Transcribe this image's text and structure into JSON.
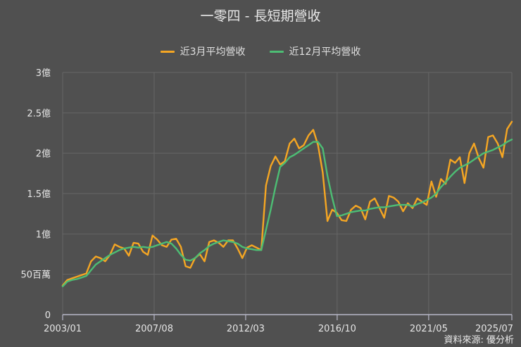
{
  "title": "一零四 - 長短期營收",
  "legend": [
    {
      "label": "近3月平均營收",
      "color": "#F5A623"
    },
    {
      "label": "近12月平均營收",
      "color": "#4DBD74"
    }
  ],
  "source": "資料來源: 優分析",
  "colors": {
    "background": "#505050",
    "grid": "#666666",
    "axis": "#b8b8c8",
    "text": "#e6e6e6"
  },
  "chart_data": {
    "type": "line",
    "title": "一零四 - 長短期營收",
    "xlabel": "",
    "ylabel": "",
    "ylim": [
      0,
      3
    ],
    "unit": "億",
    "yticks": [
      {
        "value": 0,
        "label": "0"
      },
      {
        "value": 0.5,
        "label": "50百萬"
      },
      {
        "value": 1,
        "label": "1億"
      },
      {
        "value": 1.5,
        "label": "1.5億"
      },
      {
        "value": 2,
        "label": "2億"
      },
      {
        "value": 2.5,
        "label": "2.5億"
      },
      {
        "value": 3,
        "label": "3億"
      }
    ],
    "xticks": [
      "2003/01",
      "2007/08",
      "2012/03",
      "2016/10",
      "2021/05",
      "2025/07"
    ],
    "grid": true,
    "legend_position": "top",
    "x_start": "2003/01",
    "x_step_months": 3,
    "series": [
      {
        "name": "近3月平均營收",
        "color": "#F5A623",
        "values": [
          0.36,
          0.43,
          0.45,
          0.47,
          0.49,
          0.51,
          0.66,
          0.72,
          0.7,
          0.66,
          0.74,
          0.87,
          0.84,
          0.82,
          0.73,
          0.89,
          0.88,
          0.78,
          0.74,
          0.98,
          0.93,
          0.86,
          0.84,
          0.93,
          0.94,
          0.84,
          0.6,
          0.58,
          0.7,
          0.75,
          0.66,
          0.9,
          0.92,
          0.89,
          0.84,
          0.92,
          0.92,
          0.82,
          0.7,
          0.83,
          0.86,
          0.83,
          0.8,
          1.6,
          1.84,
          1.96,
          1.86,
          1.9,
          2.12,
          2.18,
          2.06,
          2.1,
          2.22,
          2.29,
          2.1,
          1.76,
          1.16,
          1.3,
          1.26,
          1.17,
          1.16,
          1.3,
          1.35,
          1.32,
          1.18,
          1.4,
          1.44,
          1.32,
          1.2,
          1.47,
          1.45,
          1.4,
          1.28,
          1.38,
          1.32,
          1.44,
          1.4,
          1.36,
          1.65,
          1.46,
          1.68,
          1.62,
          1.92,
          1.88,
          1.95,
          1.63,
          2.0,
          2.12,
          1.94,
          1.82,
          2.2,
          2.22,
          2.12,
          1.95,
          2.3,
          2.39
        ]
      },
      {
        "name": "近12月平均營收",
        "color": "#4DBD74",
        "values": [
          0.35,
          0.41,
          0.43,
          0.44,
          0.46,
          0.48,
          0.55,
          0.62,
          0.66,
          0.7,
          0.74,
          0.77,
          0.8,
          0.82,
          0.83,
          0.84,
          0.83,
          0.84,
          0.83,
          0.84,
          0.86,
          0.88,
          0.9,
          0.88,
          0.82,
          0.74,
          0.68,
          0.67,
          0.7,
          0.76,
          0.8,
          0.85,
          0.88,
          0.9,
          0.92,
          0.91,
          0.9,
          0.88,
          0.84,
          0.82,
          0.81,
          0.8,
          0.8,
          1.05,
          1.3,
          1.58,
          1.83,
          1.88,
          1.95,
          1.98,
          2.02,
          2.06,
          2.1,
          2.14,
          2.14,
          2.06,
          1.72,
          1.45,
          1.22,
          1.23,
          1.25,
          1.27,
          1.28,
          1.29,
          1.29,
          1.31,
          1.32,
          1.33,
          1.33,
          1.34,
          1.35,
          1.36,
          1.36,
          1.36,
          1.34,
          1.37,
          1.39,
          1.42,
          1.45,
          1.5,
          1.58,
          1.64,
          1.71,
          1.77,
          1.82,
          1.85,
          1.88,
          1.92,
          1.96,
          2.0,
          2.02,
          2.04,
          2.07,
          2.1,
          2.14,
          2.17
        ]
      }
    ]
  }
}
